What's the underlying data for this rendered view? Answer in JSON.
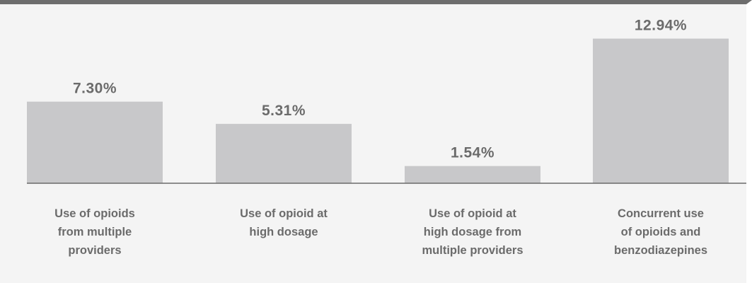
{
  "chart_data": {
    "type": "bar",
    "categories": [
      [
        "Use of opioids",
        "from multiple",
        "providers"
      ],
      [
        "Use of opioid at",
        "high dosage"
      ],
      [
        "Use of opioid at",
        "high dosage from",
        "multiple providers"
      ],
      [
        "Concurrent use",
        "of opioids and",
        "benzodiazepines"
      ]
    ],
    "values": [
      7.3,
      5.31,
      1.54,
      12.94
    ],
    "value_labels": [
      "7.30%",
      "5.31%",
      "1.54%",
      "12.94%"
    ],
    "title": "",
    "xlabel": "",
    "ylabel": "",
    "ylim": [
      0,
      14
    ],
    "grid": false,
    "legend": "none",
    "colors": {
      "bar": "#c8c8ca",
      "text": "#6b6b6b",
      "axis": "#6b6b6b",
      "background": "#f4f4f4",
      "top_rule": "#6d6d6d"
    }
  }
}
